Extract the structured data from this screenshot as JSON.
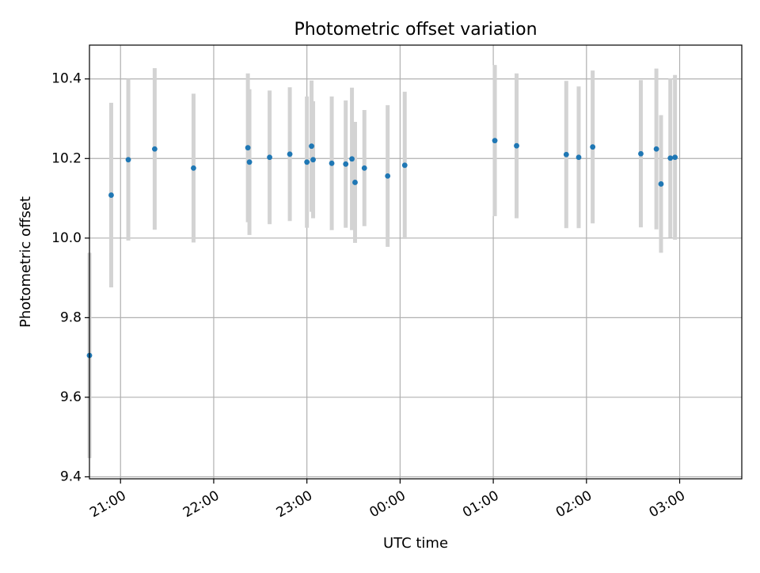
{
  "chart_data": {
    "type": "scatter",
    "title": "Photometric offset variation",
    "xlabel": "UTC time",
    "ylabel": "Photometric offset",
    "grid": true,
    "error_bars": true,
    "xlim": [
      "20:40",
      "03:40"
    ],
    "ylim": [
      9.395,
      10.485
    ],
    "x_ticks": [
      {
        "time": "21:00",
        "label": "21:00"
      },
      {
        "time": "22:00",
        "label": "22:00"
      },
      {
        "time": "23:00",
        "label": "23:00"
      },
      {
        "time": "00:00",
        "label": "00:00"
      },
      {
        "time": "01:00",
        "label": "01:00"
      },
      {
        "time": "02:00",
        "label": "02:00"
      },
      {
        "time": "03:00",
        "label": "03:00"
      }
    ],
    "y_ticks": [
      9.4,
      9.6,
      9.8,
      10.0,
      10.2,
      10.4
    ],
    "y_tick_labels": [
      "9.4",
      "9.6",
      "9.8",
      "10.0",
      "10.2",
      "10.4"
    ],
    "series": [
      {
        "color": "#1f77b4",
        "error_color": "#d3d3d3",
        "points": [
          {
            "x": "20:40",
            "y": 9.705,
            "yerr": 0.258
          },
          {
            "x": "20:54",
            "y": 10.108,
            "yerr": 0.232
          },
          {
            "x": "21:05",
            "y": 10.197,
            "yerr": 0.203
          },
          {
            "x": "21:22",
            "y": 10.224,
            "yerr": 0.203
          },
          {
            "x": "21:47",
            "y": 10.176,
            "yerr": 0.187
          },
          {
            "x": "22:22",
            "y": 10.227,
            "yerr": 0.187
          },
          {
            "x": "22:23",
            "y": 10.191,
            "yerr": 0.183
          },
          {
            "x": "22:36",
            "y": 10.203,
            "yerr": 0.168
          },
          {
            "x": "22:49",
            "y": 10.211,
            "yerr": 0.168
          },
          {
            "x": "23:00",
            "y": 10.191,
            "yerr": 0.165
          },
          {
            "x": "23:03",
            "y": 10.231,
            "yerr": 0.165
          },
          {
            "x": "23:04",
            "y": 10.197,
            "yerr": 0.147
          },
          {
            "x": "23:16",
            "y": 10.188,
            "yerr": 0.168
          },
          {
            "x": "23:25",
            "y": 10.186,
            "yerr": 0.16
          },
          {
            "x": "23:29",
            "y": 10.199,
            "yerr": 0.179
          },
          {
            "x": "23:31",
            "y": 10.14,
            "yerr": 0.152
          },
          {
            "x": "23:37",
            "y": 10.176,
            "yerr": 0.146
          },
          {
            "x": "23:52",
            "y": 10.156,
            "yerr": 0.178
          },
          {
            "x": "00:03",
            "y": 10.183,
            "yerr": 0.185
          },
          {
            "x": "01:01",
            "y": 10.245,
            "yerr": 0.19
          },
          {
            "x": "01:15",
            "y": 10.232,
            "yerr": 0.182
          },
          {
            "x": "01:47",
            "y": 10.21,
            "yerr": 0.185
          },
          {
            "x": "01:55",
            "y": 10.203,
            "yerr": 0.178
          },
          {
            "x": "02:04",
            "y": 10.229,
            "yerr": 0.192
          },
          {
            "x": "02:35",
            "y": 10.212,
            "yerr": 0.185
          },
          {
            "x": "02:45",
            "y": 10.224,
            "yerr": 0.202
          },
          {
            "x": "02:48",
            "y": 10.136,
            "yerr": 0.173
          },
          {
            "x": "02:54",
            "y": 10.201,
            "yerr": 0.2
          },
          {
            "x": "02:57",
            "y": 10.203,
            "yerr": 0.207
          }
        ]
      }
    ]
  }
}
